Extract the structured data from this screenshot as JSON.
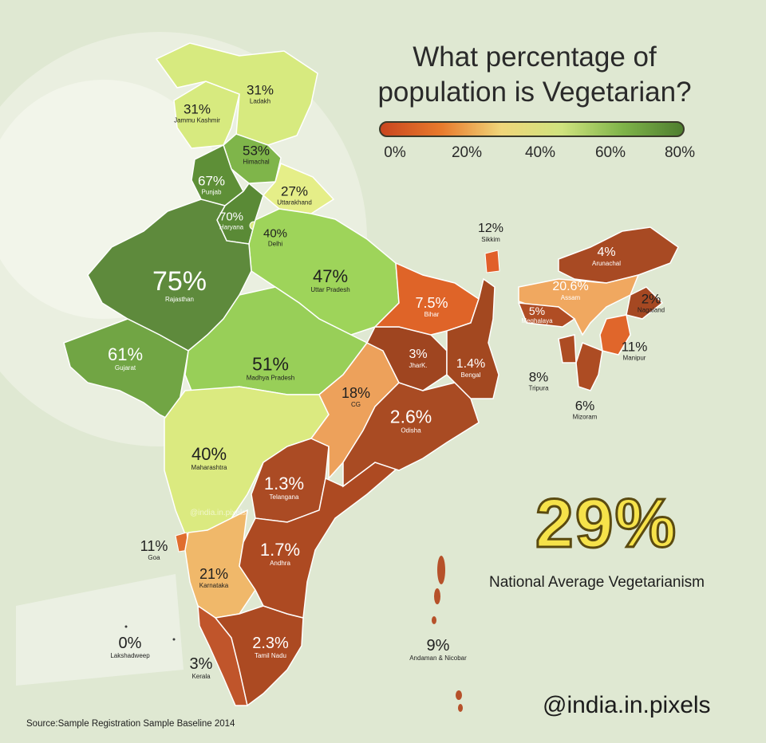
{
  "title": "What percentage of population is Vegetarian?",
  "legend": {
    "ticks": [
      "0%",
      "20%",
      "40%",
      "60%",
      "80%"
    ],
    "gradient": [
      "#c9461f",
      "#e87a2c",
      "#f0d67a",
      "#cfe37e",
      "#7fb449",
      "#4e7e2f"
    ]
  },
  "regions": [
    {
      "name": "Jammu Kashmir",
      "value": "31%"
    },
    {
      "name": "Ladakh",
      "value": "31%"
    },
    {
      "name": "Himachal",
      "value": "53%"
    },
    {
      "name": "Punjab",
      "value": "67%"
    },
    {
      "name": "Uttarakhand",
      "value": "27%"
    },
    {
      "name": "Haryana",
      "value": "70%"
    },
    {
      "name": "Delhi",
      "value": "40%"
    },
    {
      "name": "Rajasthan",
      "value": "75%"
    },
    {
      "name": "Uttar Pradesh",
      "value": "47%"
    },
    {
      "name": "Gujarat",
      "value": "61%"
    },
    {
      "name": "Madhya Pradesh",
      "value": "51%"
    },
    {
      "name": "Bihar",
      "value": "7.5%"
    },
    {
      "name": "JharK.",
      "value": "3%"
    },
    {
      "name": "Bengal",
      "value": "1.4%"
    },
    {
      "name": "CG",
      "value": "18%"
    },
    {
      "name": "Odisha",
      "value": "2.6%"
    },
    {
      "name": "Maharashtra",
      "value": "40%"
    },
    {
      "name": "Telangana",
      "value": "1.3%"
    },
    {
      "name": "Goa",
      "value": "11%"
    },
    {
      "name": "Andhra",
      "value": "1.7%"
    },
    {
      "name": "Karnataka",
      "value": "21%"
    },
    {
      "name": "Tamil Nadu",
      "value": "2.3%"
    },
    {
      "name": "Kerala",
      "value": "3%"
    },
    {
      "name": "Lakshadweep",
      "value": "0%"
    },
    {
      "name": "Andaman & Nicobar",
      "value": "9%"
    },
    {
      "name": "Sikkim",
      "value": "12%"
    },
    {
      "name": "Arunachal",
      "value": "4%"
    },
    {
      "name": "Assam",
      "value": "20.6%"
    },
    {
      "name": "Meghalaya",
      "value": "5%"
    },
    {
      "name": "Nagaland",
      "value": "2%"
    },
    {
      "name": "Manipur",
      "value": "11%"
    },
    {
      "name": "Tripura",
      "value": "8%"
    },
    {
      "name": "Mizoram",
      "value": "6%"
    }
  ],
  "national": {
    "value": "29%",
    "label": "National Average Vegetarianism"
  },
  "handle": "@india.in.pixels",
  "source": "Source:Sample Registration Sample Baseline 2014",
  "watermark": "@india.in.pixels"
}
